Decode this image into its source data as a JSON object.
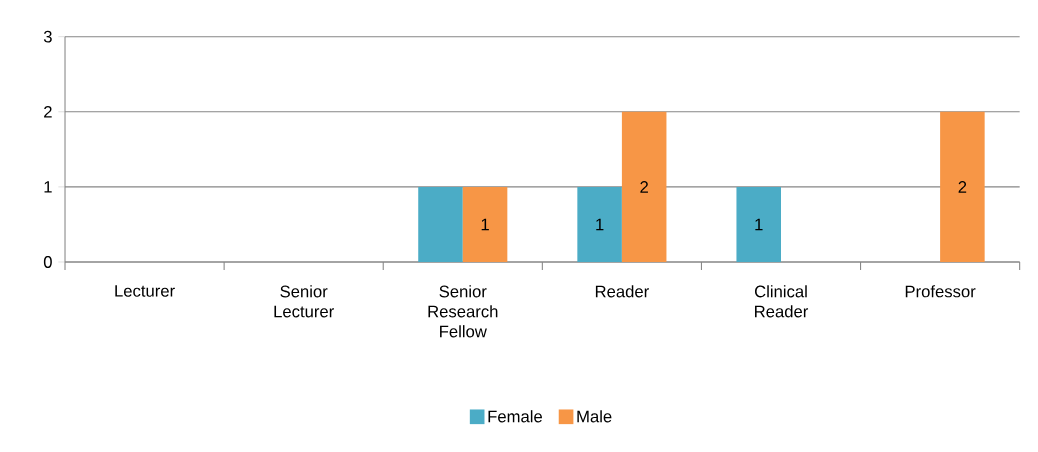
{
  "chart_data": {
    "type": "bar",
    "categories": [
      "Lecturer",
      "Senior Lecturer",
      "Senior Research Fellow",
      "Reader",
      "Clinical Reader",
      "Professor"
    ],
    "series": [
      {
        "name": "Female",
        "color": "#4bacc6",
        "values": [
          0,
          0,
          1,
          1,
          1,
          0
        ],
        "value_labels": [
          null,
          null,
          null,
          "1",
          "1",
          null
        ]
      },
      {
        "name": "Male",
        "color": "#f79646",
        "values": [
          0,
          0,
          1,
          2,
          0,
          2
        ],
        "value_labels": [
          null,
          null,
          "1",
          "2",
          null,
          "2"
        ]
      }
    ],
    "ylim": [
      0,
      3
    ],
    "yticks": [
      0,
      1,
      2,
      3
    ],
    "grid": "y",
    "legend": "bottom"
  }
}
